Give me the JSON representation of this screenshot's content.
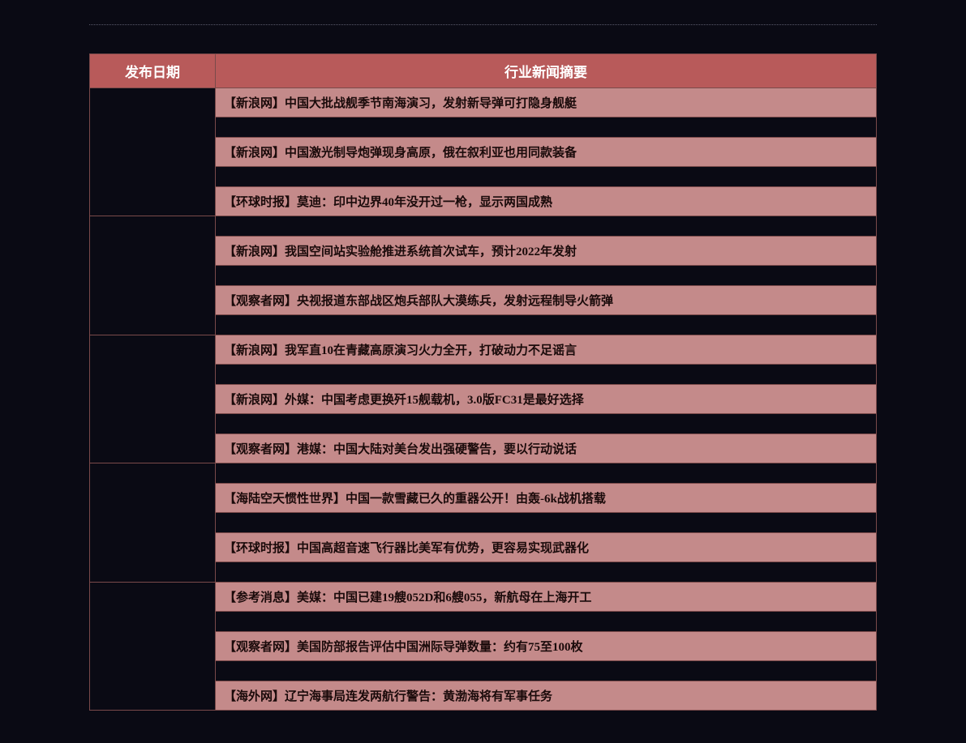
{
  "headers": {
    "date_col": "发布日期",
    "summary_col": "行业新闻摘要"
  },
  "colors": {
    "header_bg": "#b85a5a",
    "header_text": "#ffffff",
    "news_bg": "#c48a8a",
    "news_text": "#1a0a0a",
    "dark_bg": "#0a0a14",
    "border": "#7a4a4a"
  },
  "groups": [
    {
      "rows": [
        {
          "type": "news",
          "text": "【新浪网】中国大批战舰季节南海演习，发射新导弹可打隐身舰艇"
        },
        {
          "type": "spacer"
        },
        {
          "type": "news",
          "text": "【新浪网】中国激光制导炮弹现身高原，俄在叙利亚也用同款装备"
        },
        {
          "type": "spacer"
        },
        {
          "type": "news",
          "text": "【环球时报】莫迪：印中边界40年没开过一枪，显示两国成熟"
        }
      ]
    },
    {
      "rows": [
        {
          "type": "spacer"
        },
        {
          "type": "news",
          "text": "【新浪网】我国空间站实验舱推进系统首次试车，预计2022年发射"
        },
        {
          "type": "spacer"
        },
        {
          "type": "news",
          "text": "【观察者网】央视报道东部战区炮兵部队大漠练兵，发射远程制导火箭弹"
        },
        {
          "type": "spacer"
        }
      ]
    },
    {
      "rows": [
        {
          "type": "news",
          "text": "【新浪网】我军直10在青藏高原演习火力全开，打破动力不足谣言"
        },
        {
          "type": "spacer"
        },
        {
          "type": "news",
          "text": "【新浪网】外媒：中国考虑更换歼15舰载机，3.0版FC31是最好选择"
        },
        {
          "type": "spacer"
        },
        {
          "type": "news",
          "text": "【观察者网】港媒：中国大陆对美台发出强硬警告，要以行动说话"
        }
      ]
    },
    {
      "rows": [
        {
          "type": "spacer"
        },
        {
          "type": "news",
          "text": "【海陆空天惯性世界】中国一款雪藏已久的重器公开！由轰-6k战机搭载"
        },
        {
          "type": "spacer"
        },
        {
          "type": "news",
          "text": "【环球时报】中国高超音速飞行器比美军有优势，更容易实现武器化"
        },
        {
          "type": "spacer"
        }
      ]
    },
    {
      "rows": [
        {
          "type": "news",
          "text": "【参考消息】美媒：中国已建19艘052D和6艘055，新航母在上海开工"
        },
        {
          "type": "spacer"
        },
        {
          "type": "news",
          "text": "【观察者网】美国防部报告评估中国洲际导弹数量：约有75至100枚"
        },
        {
          "type": "spacer"
        },
        {
          "type": "news",
          "text": "【海外网】辽宁海事局连发两航行警告：黄渤海将有军事任务"
        }
      ]
    }
  ]
}
